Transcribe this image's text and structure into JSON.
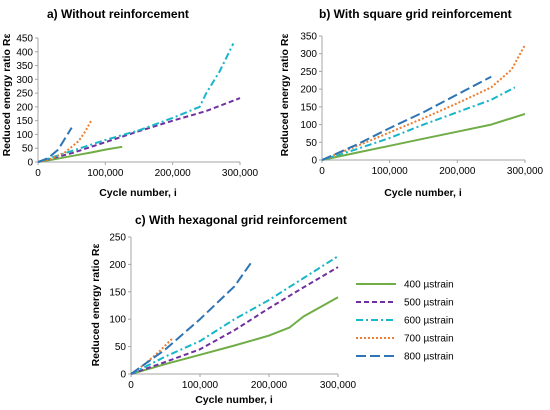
{
  "legend": {
    "entries": [
      {
        "label": "400 µstrain",
        "color": "#70ad47",
        "dash": "solid"
      },
      {
        "label": "500 µstrain",
        "color": "#7030a0",
        "dash": "dash"
      },
      {
        "label": "600 µstrain",
        "color": "#17b6c8",
        "dash": "dashdot"
      },
      {
        "label": "700 µstrain",
        "color": "#ed7d31",
        "dash": "dot"
      },
      {
        "label": "800 µstrain",
        "color": "#2e75b6",
        "dash": "longdash"
      }
    ]
  },
  "chart_data": [
    {
      "type": "line",
      "title": "a) Without reinforcement",
      "xlabel": "Cycle number, i",
      "ylabel": "Reduced energy ratio Rε",
      "xlim": [
        0,
        300000
      ],
      "ylim": [
        0,
        450
      ],
      "xticks": [
        "0",
        "100,000",
        "200,000",
        "300,000"
      ],
      "xtick_values": [
        0,
        100000,
        200000,
        300000
      ],
      "yticks": [
        "0",
        "50",
        "100",
        "150",
        "200",
        "250",
        "300",
        "350",
        "400",
        "450"
      ],
      "ytick_values": [
        0,
        50,
        100,
        150,
        200,
        250,
        300,
        350,
        400,
        450
      ],
      "grid": false,
      "series": [
        {
          "name": "400 µstrain",
          "x": [
            0,
            20000,
            40000,
            60000,
            80000,
            100000,
            125000
          ],
          "y": [
            0,
            8,
            17,
            26,
            35,
            45,
            55
          ]
        },
        {
          "name": "500 µstrain",
          "x": [
            0,
            50000,
            100000,
            150000,
            200000,
            250000,
            300000
          ],
          "y": [
            0,
            32,
            72,
            112,
            150,
            185,
            232
          ]
        },
        {
          "name": "600 µstrain",
          "x": [
            0,
            50000,
            100000,
            150000,
            200000,
            240000,
            250000,
            270000,
            290000
          ],
          "y": [
            0,
            40,
            80,
            115,
            160,
            200,
            250,
            330,
            430
          ]
        },
        {
          "name": "700 µstrain",
          "x": [
            0,
            20000,
            40000,
            60000,
            70000,
            80000
          ],
          "y": [
            0,
            12,
            35,
            75,
            110,
            155
          ]
        },
        {
          "name": "800 µstrain",
          "x": [
            0,
            15000,
            30000,
            40000,
            50000
          ],
          "y": [
            0,
            14,
            45,
            85,
            125
          ]
        }
      ]
    },
    {
      "type": "line",
      "title": "b) With square grid reinforcement",
      "xlabel": "Cycle number, i",
      "ylabel": "Reduced energy ratio Rε",
      "xlim": [
        0,
        300000
      ],
      "ylim": [
        0,
        350
      ],
      "xticks": [
        "0",
        "100,000",
        "200,000",
        "300,000"
      ],
      "xtick_values": [
        0,
        100000,
        200000,
        300000
      ],
      "yticks": [
        "0",
        "50",
        "100",
        "150",
        "200",
        "250",
        "300",
        "350"
      ],
      "ytick_values": [
        0,
        50,
        100,
        150,
        200,
        250,
        300,
        350
      ],
      "grid": false,
      "series": [
        {
          "name": "400 µstrain",
          "x": [
            0,
            50000,
            100000,
            150000,
            200000,
            250000,
            300000
          ],
          "y": [
            0,
            20,
            40,
            60,
            80,
            100,
            130
          ]
        },
        {
          "name": "600 µstrain",
          "x": [
            0,
            50000,
            100000,
            150000,
            200000,
            250000,
            285000
          ],
          "y": [
            0,
            30,
            62,
            100,
            135,
            170,
            205
          ]
        },
        {
          "name": "700 µstrain",
          "x": [
            0,
            50000,
            100000,
            150000,
            200000,
            250000,
            280000,
            300000
          ],
          "y": [
            0,
            38,
            78,
            118,
            160,
            205,
            255,
            325
          ]
        },
        {
          "name": "800 µstrain",
          "x": [
            0,
            50000,
            100000,
            150000,
            200000,
            250000
          ],
          "y": [
            0,
            42,
            90,
            135,
            185,
            235
          ]
        }
      ]
    },
    {
      "type": "line",
      "title": "c) With hexagonal grid reinforcement",
      "xlabel": "Cycle number, i",
      "ylabel": "Reduced energy ratio Rε",
      "xlim": [
        0,
        300000
      ],
      "ylim": [
        0,
        250
      ],
      "xticks": [
        "0",
        "100,000",
        "200,000",
        "300,000"
      ],
      "xtick_values": [
        0,
        100000,
        200000,
        300000
      ],
      "yticks": [
        "0",
        "50",
        "100",
        "150",
        "200",
        "250"
      ],
      "ytick_values": [
        0,
        50,
        100,
        150,
        200,
        250
      ],
      "grid": false,
      "series": [
        {
          "name": "400 µstrain",
          "x": [
            0,
            50000,
            100000,
            150000,
            200000,
            230000,
            250000,
            300000
          ],
          "y": [
            0,
            18,
            35,
            52,
            70,
            85,
            105,
            140
          ]
        },
        {
          "name": "500 µstrain",
          "x": [
            0,
            50000,
            100000,
            150000,
            200000,
            250000,
            300000
          ],
          "y": [
            0,
            22,
            45,
            80,
            120,
            158,
            195
          ]
        },
        {
          "name": "600 µstrain",
          "x": [
            0,
            50000,
            100000,
            150000,
            200000,
            250000,
            300000
          ],
          "y": [
            0,
            32,
            60,
            100,
            135,
            175,
            215
          ]
        },
        {
          "name": "700 µstrain",
          "x": [
            0,
            20000,
            40000,
            60000
          ],
          "y": [
            0,
            18,
            40,
            65
          ]
        },
        {
          "name": "800 µstrain",
          "x": [
            0,
            50000,
            100000,
            150000,
            175000
          ],
          "y": [
            0,
            45,
            100,
            160,
            205
          ]
        }
      ]
    }
  ]
}
